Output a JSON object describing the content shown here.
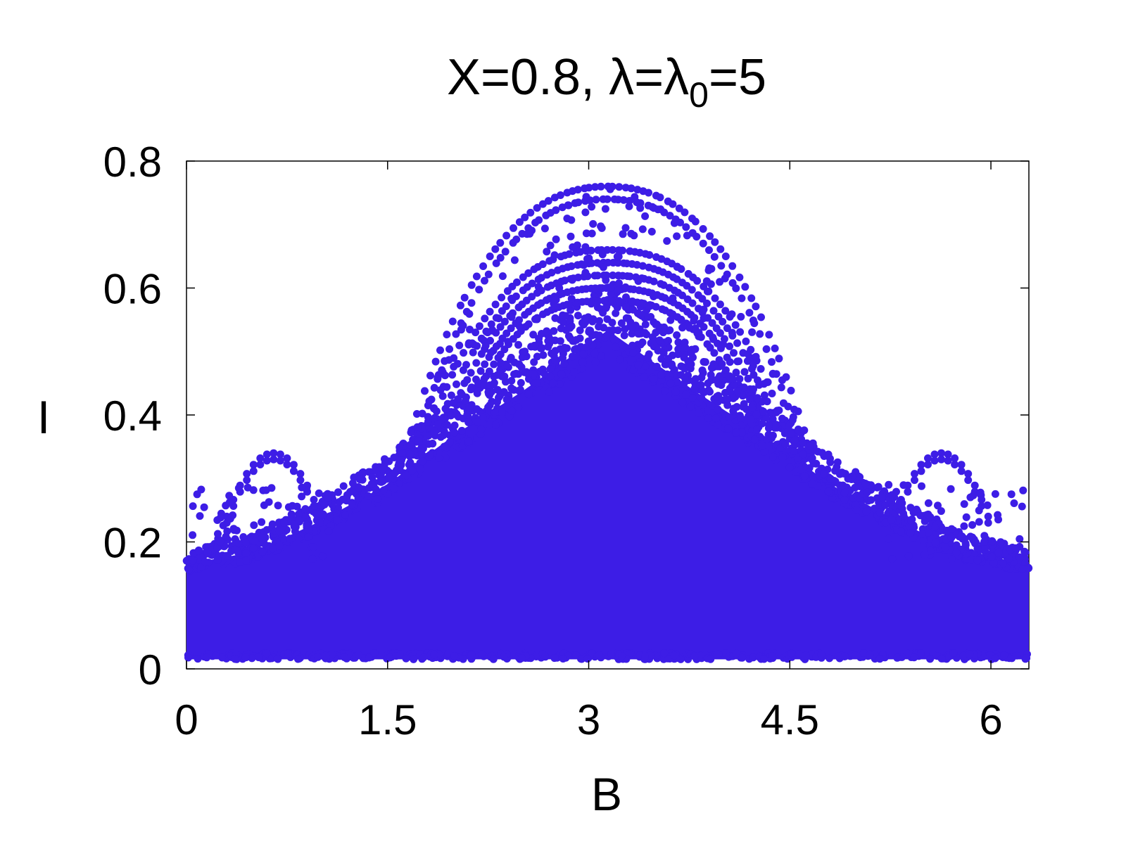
{
  "chart_data": {
    "type": "scatter",
    "title": {
      "main": "X=0.8, λ=λ",
      "subscript": "0",
      "suffix": "=5"
    },
    "xlabel": "B",
    "ylabel": "I",
    "xlim": [
      0,
      6.2832
    ],
    "ylim": [
      0,
      0.8
    ],
    "xticks": [
      "0",
      "1.5",
      "3",
      "4.5",
      "6"
    ],
    "yticks": [
      "0",
      "0.2",
      "0.4",
      "0.6",
      "0.8"
    ],
    "xtick_values": [
      0,
      1.5,
      3,
      4.5,
      6
    ],
    "ytick_values": [
      0,
      0.2,
      0.4,
      0.6,
      0.8
    ],
    "grid": false,
    "legend": "none",
    "marker_color": "#3d1de6",
    "series": [
      {
        "description_points": "dense band of points symmetric about B=π; lower envelope ~0.01–0.02, upper dense envelope rising from ~0.17 at B=0 to ~0.55 at B=π",
        "arcs_peak_values": [
          0.76,
          0.74,
          0.66,
          0.64,
          0.62,
          0.6,
          0.58
        ],
        "edge_arcs_peak_values": [
          0.34,
          0.33
        ],
        "dense_upper_envelope": [
          [
            0.0,
            0.17
          ],
          [
            0.5,
            0.19
          ],
          [
            1.0,
            0.24
          ],
          [
            1.5,
            0.3
          ],
          [
            2.0,
            0.38
          ],
          [
            2.5,
            0.45
          ],
          [
            3.1416,
            0.55
          ],
          [
            3.8,
            0.45
          ],
          [
            4.3,
            0.38
          ],
          [
            4.8,
            0.3
          ],
          [
            5.3,
            0.24
          ],
          [
            5.8,
            0.19
          ],
          [
            6.2832,
            0.17
          ]
        ],
        "dense_lower_envelope": 0.015
      }
    ]
  }
}
